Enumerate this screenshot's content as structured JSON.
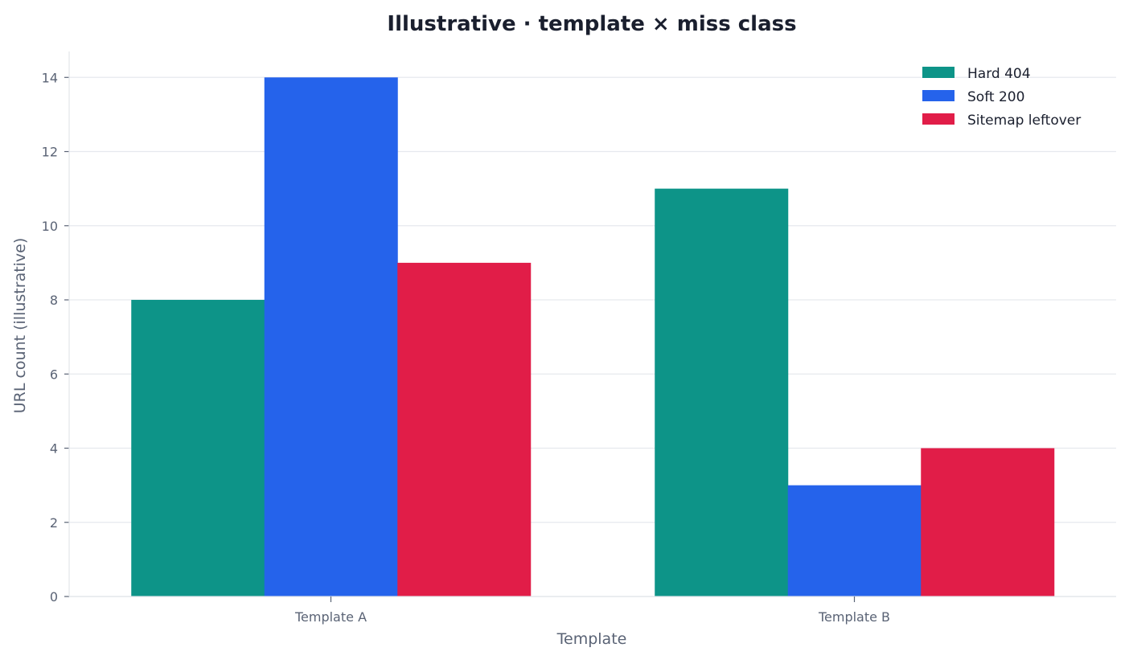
{
  "chart_data": {
    "type": "bar",
    "title": "Illustrative · template × miss class",
    "xlabel": "Template",
    "ylabel": "URL count (illustrative)",
    "categories": [
      "Template A",
      "Template B"
    ],
    "series": [
      {
        "name": "Hard 404",
        "color": "#0d9488",
        "values": [
          8,
          11
        ]
      },
      {
        "name": "Soft 200",
        "color": "#2563eb",
        "values": [
          14,
          3
        ]
      },
      {
        "name": "Sitemap leftover",
        "color": "#e11d48",
        "values": [
          9,
          4
        ]
      }
    ],
    "ylim": [
      0,
      14.7
    ],
    "yticks": [
      0,
      2,
      4,
      6,
      8,
      10,
      12,
      14
    ],
    "grid": true,
    "legend_position": "top-right"
  }
}
